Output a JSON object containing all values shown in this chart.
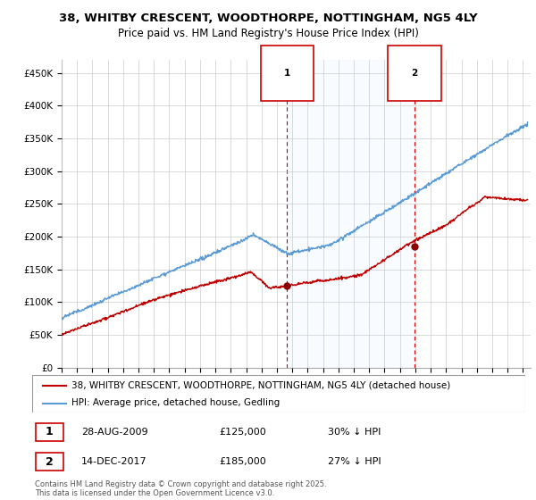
{
  "title": "38, WHITBY CRESCENT, WOODTHORPE, NOTTINGHAM, NG5 4LY",
  "subtitle": "Price paid vs. HM Land Registry's House Price Index (HPI)",
  "ylabel_ticks": [
    "£0",
    "£50K",
    "£100K",
    "£150K",
    "£200K",
    "£250K",
    "£300K",
    "£350K",
    "£400K",
    "£450K"
  ],
  "ytick_values": [
    0,
    50000,
    100000,
    150000,
    200000,
    250000,
    300000,
    350000,
    400000,
    450000
  ],
  "ylim": [
    0,
    470000
  ],
  "xlim_start": 1995.0,
  "xlim_end": 2025.5,
  "xticks": [
    1995,
    1996,
    1997,
    1998,
    1999,
    2000,
    2001,
    2002,
    2003,
    2004,
    2005,
    2006,
    2007,
    2008,
    2009,
    2010,
    2011,
    2012,
    2013,
    2014,
    2015,
    2016,
    2017,
    2018,
    2019,
    2020,
    2021,
    2022,
    2023,
    2024,
    2025
  ],
  "hpi_color": "#5b9bd5",
  "hpi_fill_color": "#ddeeff",
  "price_color": "#c00000",
  "marker_color": "#8b0000",
  "vline_color": "#cc0000",
  "grid_color": "#cccccc",
  "bg_color": "#ffffff",
  "sale1_x": 2009.65,
  "sale1_y": 125000,
  "sale2_x": 2017.95,
  "sale2_y": 185000,
  "legend_line1": "38, WHITBY CRESCENT, WOODTHORPE, NOTTINGHAM, NG5 4LY (detached house)",
  "legend_line2": "HPI: Average price, detached house, Gedling",
  "table_row1": [
    "1",
    "28-AUG-2009",
    "£125,000",
    "30% ↓ HPI"
  ],
  "table_row2": [
    "2",
    "14-DEC-2017",
    "£185,000",
    "27% ↓ HPI"
  ],
  "footnote": "Contains HM Land Registry data © Crown copyright and database right 2025.\nThis data is licensed under the Open Government Licence v3.0.",
  "title_fontsize": 9.5,
  "subtitle_fontsize": 8.5,
  "tick_fontsize": 7.5,
  "legend_fontsize": 7.5,
  "table_fontsize": 8,
  "footnote_fontsize": 6
}
